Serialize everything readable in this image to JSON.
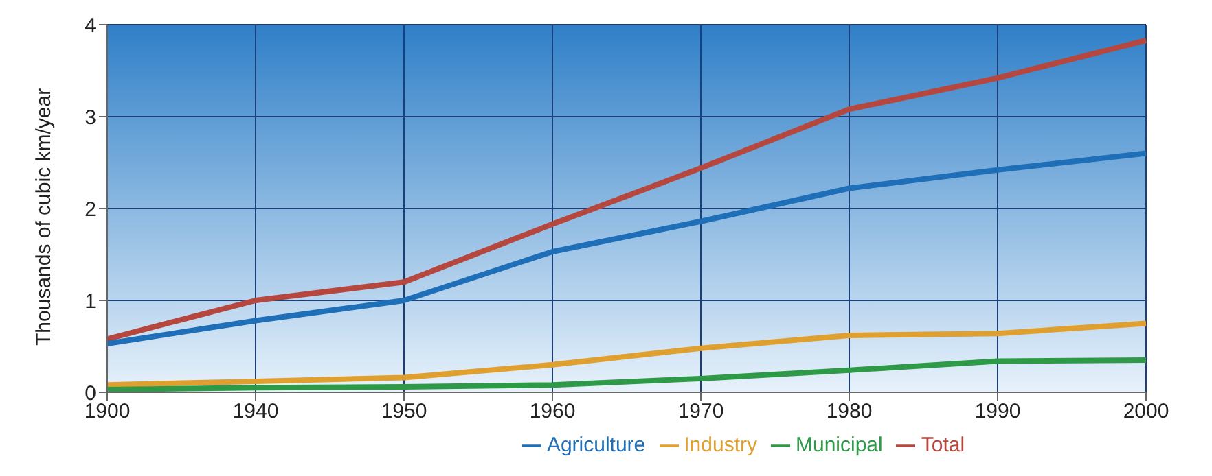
{
  "chart_data": {
    "type": "line",
    "ylabel": "Thousands of cubic km/year",
    "categories": [
      "1900",
      "1940",
      "1950",
      "1960",
      "1970",
      "1980",
      "1990",
      "2000"
    ],
    "series": [
      {
        "name": "Total",
        "color": "#b5473f",
        "values": [
          0.58,
          1.0,
          1.2,
          1.83,
          2.44,
          3.08,
          3.42,
          3.83
        ]
      },
      {
        "name": "Agriculture",
        "color": "#1f6fb8",
        "values": [
          0.53,
          0.78,
          1.0,
          1.53,
          1.86,
          2.22,
          2.42,
          2.6
        ]
      },
      {
        "name": "Industry",
        "color": "#e0a030",
        "values": [
          0.08,
          0.12,
          0.16,
          0.3,
          0.48,
          0.62,
          0.64,
          0.75
        ]
      },
      {
        "name": "Municipal",
        "color": "#2e9a48",
        "values": [
          0.03,
          0.05,
          0.06,
          0.08,
          0.15,
          0.24,
          0.34,
          0.35
        ]
      }
    ],
    "ylim": [
      0,
      4
    ],
    "yticks": [
      0,
      1,
      2,
      3,
      4
    ],
    "grid": true,
    "legend": "bottom",
    "marker": "none",
    "line_style": "solid"
  }
}
